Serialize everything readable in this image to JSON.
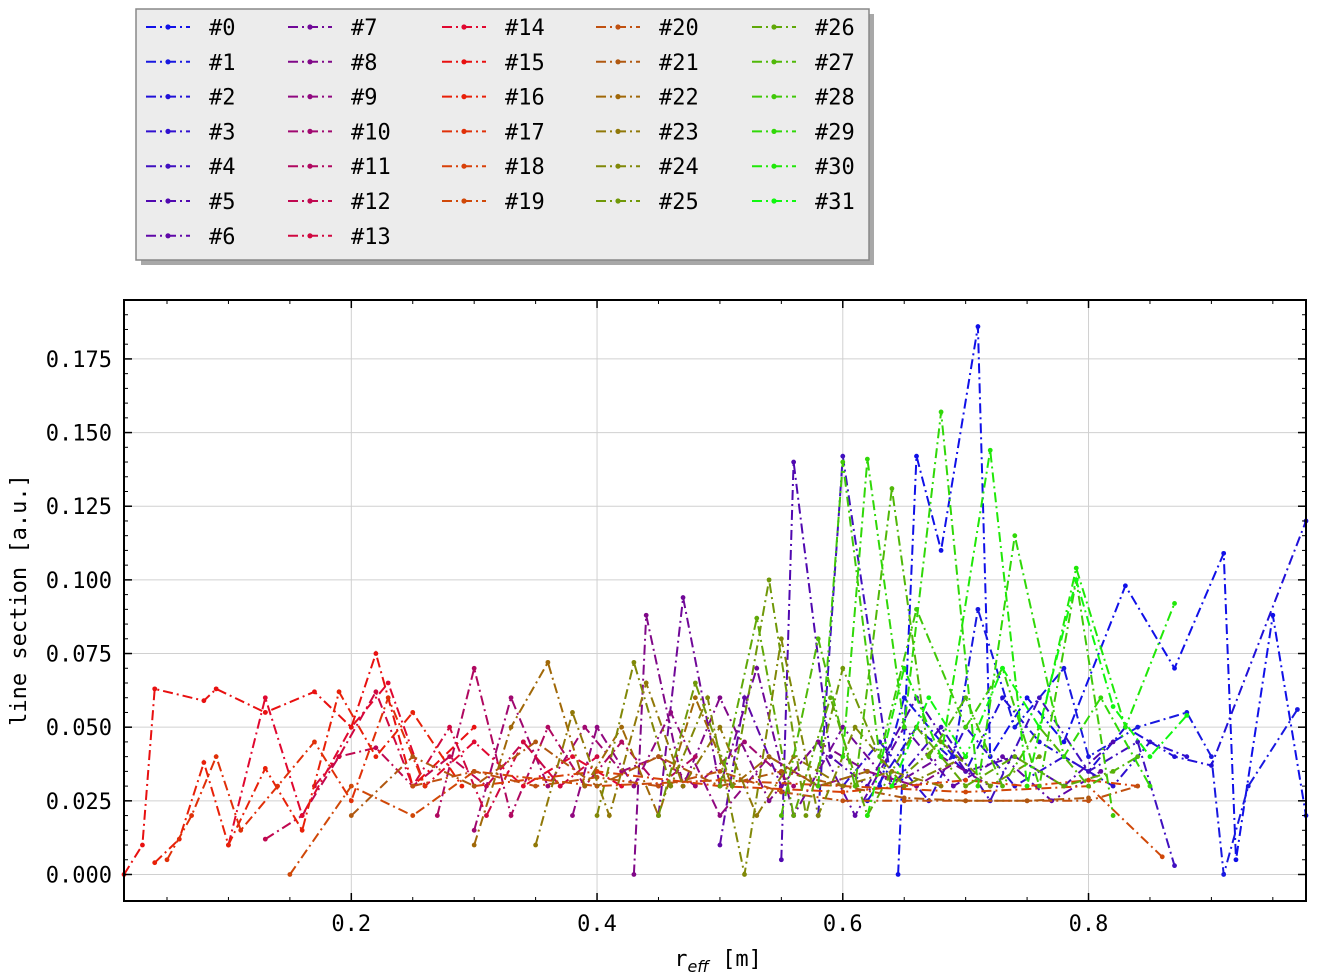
{
  "chart_data": {
    "type": "line",
    "xlabel": "r_eff [m]",
    "xlabel_main": "r",
    "xlabel_sub": "eff",
    "xlabel_unit": " [m]",
    "ylabel": "line section [a.u.]",
    "xlim": [
      0.015,
      0.977
    ],
    "ylim": [
      -0.009,
      0.195
    ],
    "xticks": [
      0.2,
      0.4,
      0.6,
      0.8
    ],
    "xtick_labels": [
      "0.2",
      "0.4",
      "0.6",
      "0.8"
    ],
    "yticks": [
      0.0,
      0.025,
      0.05,
      0.075,
      0.1,
      0.125,
      0.15,
      0.175
    ],
    "ytick_labels": [
      "0.000",
      "0.025",
      "0.050",
      "0.075",
      "0.100",
      "0.125",
      "0.150",
      "0.175"
    ],
    "grid": true,
    "legend_position": "above plot, top-left",
    "legend_columns": 5,
    "line_style": "dash-dot with markers",
    "series": [
      {
        "name": "#0",
        "color": "#1010e8",
        "x": [
          0.645,
          0.66,
          0.68,
          0.71,
          0.72,
          0.75,
          0.78,
          0.83,
          0.87,
          0.91,
          0.92,
          0.95,
          0.977
        ],
        "y": [
          0.0,
          0.142,
          0.11,
          0.186,
          0.04,
          0.06,
          0.045,
          0.098,
          0.07,
          0.109,
          0.005,
          0.088,
          0.02
        ]
      },
      {
        "name": "#1",
        "color": "#1818e0",
        "x": [
          0.63,
          0.65,
          0.69,
          0.71,
          0.74,
          0.78,
          0.8,
          0.84,
          0.88,
          0.9,
          0.91,
          0.93,
          0.97
        ],
        "y": [
          0.03,
          0.06,
          0.04,
          0.09,
          0.05,
          0.07,
          0.04,
          0.05,
          0.055,
          0.04,
          0.0,
          0.03,
          0.056
        ]
      },
      {
        "name": "#2",
        "color": "#2010d8",
        "x": [
          0.62,
          0.66,
          0.7,
          0.73,
          0.76,
          0.8,
          0.83,
          0.87,
          0.9,
          0.977
        ],
        "y": [
          0.025,
          0.05,
          0.035,
          0.06,
          0.045,
          0.035,
          0.05,
          0.04,
          0.037,
          0.12
        ]
      },
      {
        "name": "#3",
        "color": "#3010d0",
        "x": [
          0.6,
          0.63,
          0.67,
          0.7,
          0.74,
          0.78,
          0.82,
          0.85,
          0.88
        ],
        "y": [
          0.03,
          0.045,
          0.025,
          0.05,
          0.03,
          0.04,
          0.03,
          0.045,
          0.04
        ]
      },
      {
        "name": "#4",
        "color": "#4010c0",
        "x": [
          0.58,
          0.6,
          0.64,
          0.68,
          0.72,
          0.76,
          0.8,
          0.84,
          0.87
        ],
        "y": [
          0.02,
          0.142,
          0.03,
          0.05,
          0.025,
          0.06,
          0.035,
          0.045,
          0.003
        ]
      },
      {
        "name": "#5",
        "color": "#5008b0",
        "x": [
          0.55,
          0.56,
          0.59,
          0.62,
          0.66,
          0.7,
          0.74,
          0.78,
          0.82
        ],
        "y": [
          0.005,
          0.14,
          0.04,
          0.03,
          0.06,
          0.035,
          0.04,
          0.03,
          0.045
        ]
      },
      {
        "name": "#6",
        "color": "#6008a8",
        "x": [
          0.5,
          0.52,
          0.55,
          0.58,
          0.61,
          0.65,
          0.69,
          0.73,
          0.77,
          0.81
        ],
        "y": [
          0.01,
          0.06,
          0.03,
          0.045,
          0.02,
          0.05,
          0.03,
          0.04,
          0.025,
          0.035
        ]
      },
      {
        "name": "#7",
        "color": "#700898",
        "x": [
          0.45,
          0.47,
          0.5,
          0.53,
          0.56,
          0.6,
          0.64,
          0.68,
          0.72
        ],
        "y": [
          0.02,
          0.094,
          0.03,
          0.07,
          0.02,
          0.05,
          0.03,
          0.04,
          0.03
        ]
      },
      {
        "name": "#8",
        "color": "#800888",
        "x": [
          0.43,
          0.44,
          0.47,
          0.5,
          0.54,
          0.58,
          0.62,
          0.66,
          0.7
        ],
        "y": [
          0.0,
          0.088,
          0.03,
          0.06,
          0.025,
          0.045,
          0.035,
          0.03,
          0.04
        ]
      },
      {
        "name": "#9",
        "color": "#900880",
        "x": [
          0.38,
          0.4,
          0.43,
          0.46,
          0.5,
          0.54,
          0.58,
          0.62,
          0.66
        ],
        "y": [
          0.02,
          0.05,
          0.03,
          0.055,
          0.02,
          0.04,
          0.03,
          0.035,
          0.03
        ]
      },
      {
        "name": "#10",
        "color": "#a00870",
        "x": [
          0.3,
          0.33,
          0.36,
          0.39,
          0.42,
          0.45,
          0.48,
          0.52,
          0.56
        ],
        "y": [
          0.015,
          0.06,
          0.03,
          0.05,
          0.035,
          0.04,
          0.03,
          0.045,
          0.03
        ]
      },
      {
        "name": "#11",
        "color": "#b00860",
        "x": [
          0.27,
          0.3,
          0.33,
          0.36,
          0.39,
          0.42,
          0.45,
          0.48
        ],
        "y": [
          0.02,
          0.07,
          0.02,
          0.05,
          0.03,
          0.045,
          0.03,
          0.04
        ]
      },
      {
        "name": "#12",
        "color": "#c00850",
        "x": [
          0.13,
          0.16,
          0.19,
          0.22,
          0.25,
          0.28,
          0.31,
          0.34,
          0.37
        ],
        "y": [
          0.012,
          0.02,
          0.04,
          0.043,
          0.03,
          0.04,
          0.03,
          0.045,
          0.03
        ]
      },
      {
        "name": "#13",
        "color": "#d00840",
        "x": [
          0.17,
          0.19,
          0.22,
          0.25,
          0.28,
          0.31,
          0.34,
          0.37,
          0.4
        ],
        "y": [
          0.03,
          0.04,
          0.062,
          0.03,
          0.05,
          0.02,
          0.045,
          0.03,
          0.04
        ]
      },
      {
        "name": "#14",
        "color": "#e00830",
        "x": [
          0.1,
          0.13,
          0.16,
          0.2,
          0.23,
          0.26,
          0.3,
          0.34,
          0.38,
          0.42
        ],
        "y": [
          0.01,
          0.06,
          0.02,
          0.05,
          0.065,
          0.03,
          0.045,
          0.03,
          0.04,
          0.03
        ]
      },
      {
        "name": "#15",
        "color": "#e81010",
        "x": [
          0.015,
          0.03,
          0.04,
          0.08,
          0.09,
          0.13,
          0.17,
          0.2,
          0.22,
          0.25,
          0.3
        ],
        "y": [
          0.0,
          0.01,
          0.063,
          0.059,
          0.063,
          0.055,
          0.062,
          0.05,
          0.075,
          0.03,
          0.05
        ]
      },
      {
        "name": "#16",
        "color": "#e82008",
        "x": [
          0.04,
          0.06,
          0.08,
          0.1,
          0.13,
          0.16,
          0.19,
          0.22,
          0.25,
          0.29
        ],
        "y": [
          0.004,
          0.012,
          0.038,
          0.01,
          0.036,
          0.015,
          0.062,
          0.04,
          0.055,
          0.03
        ]
      },
      {
        "name": "#17",
        "color": "#e03008",
        "x": [
          0.05,
          0.07,
          0.09,
          0.11,
          0.14,
          0.17,
          0.2,
          0.23,
          0.26
        ],
        "y": [
          0.005,
          0.02,
          0.04,
          0.015,
          0.03,
          0.045,
          0.025,
          0.06,
          0.03
        ]
      },
      {
        "name": "#18",
        "color": "#d84008",
        "x": [
          0.3,
          0.4,
          0.5,
          0.6,
          0.65,
          0.7,
          0.75,
          0.8,
          0.84
        ],
        "y": [
          0.03,
          0.035,
          0.03,
          0.028,
          0.03,
          0.032,
          0.03,
          0.032,
          0.03
        ]
      },
      {
        "name": "#19",
        "color": "#d04808",
        "x": [
          0.15,
          0.2,
          0.25,
          0.3,
          0.4,
          0.5,
          0.6,
          0.7,
          0.8,
          0.86
        ],
        "y": [
          0.0,
          0.03,
          0.02,
          0.035,
          0.03,
          0.032,
          0.03,
          0.028,
          0.03,
          0.006
        ]
      },
      {
        "name": "#20",
        "color": "#c05010",
        "x": [
          0.25,
          0.3,
          0.35,
          0.4,
          0.45,
          0.5,
          0.55,
          0.6,
          0.65,
          0.7,
          0.75,
          0.8,
          0.84
        ],
        "y": [
          0.03,
          0.035,
          0.03,
          0.033,
          0.03,
          0.035,
          0.028,
          0.025,
          0.025,
          0.025,
          0.025,
          0.025,
          0.03
        ]
      },
      {
        "name": "#21",
        "color": "#b05810",
        "x": [
          0.2,
          0.25,
          0.3,
          0.35,
          0.4,
          0.45,
          0.5,
          0.55,
          0.6,
          0.65,
          0.7,
          0.75,
          0.8
        ],
        "y": [
          0.02,
          0.04,
          0.03,
          0.045,
          0.03,
          0.04,
          0.03,
          0.035,
          0.03,
          0.026,
          0.025,
          0.025,
          0.026
        ]
      },
      {
        "name": "#22",
        "color": "#a06808",
        "x": [
          0.3,
          0.33,
          0.36,
          0.39,
          0.42,
          0.45,
          0.48,
          0.51,
          0.54,
          0.58,
          0.62
        ],
        "y": [
          0.01,
          0.05,
          0.072,
          0.03,
          0.05,
          0.02,
          0.06,
          0.03,
          0.04,
          0.03,
          0.035
        ]
      },
      {
        "name": "#23",
        "color": "#907808",
        "x": [
          0.35,
          0.38,
          0.41,
          0.44,
          0.47,
          0.5,
          0.53,
          0.56,
          0.6,
          0.64,
          0.68
        ],
        "y": [
          0.01,
          0.055,
          0.02,
          0.065,
          0.03,
          0.05,
          0.02,
          0.04,
          0.03,
          0.035,
          0.03
        ]
      },
      {
        "name": "#24",
        "color": "#808808",
        "x": [
          0.4,
          0.43,
          0.46,
          0.49,
          0.52,
          0.55,
          0.58,
          0.61,
          0.65,
          0.7
        ],
        "y": [
          0.02,
          0.072,
          0.03,
          0.06,
          0.0,
          0.08,
          0.02,
          0.05,
          0.03,
          0.04
        ]
      },
      {
        "name": "#25",
        "color": "#709808",
        "x": [
          0.45,
          0.48,
          0.51,
          0.54,
          0.57,
          0.6,
          0.64,
          0.68,
          0.72,
          0.76
        ],
        "y": [
          0.02,
          0.065,
          0.03,
          0.1,
          0.02,
          0.07,
          0.03,
          0.045,
          0.03,
          0.04
        ]
      },
      {
        "name": "#26",
        "color": "#60a808",
        "x": [
          0.5,
          0.53,
          0.56,
          0.59,
          0.62,
          0.66,
          0.7,
          0.74,
          0.78,
          0.82
        ],
        "y": [
          0.03,
          0.087,
          0.02,
          0.06,
          0.02,
          0.05,
          0.03,
          0.04,
          0.03,
          0.035
        ]
      },
      {
        "name": "#27",
        "color": "#50b808",
        "x": [
          0.55,
          0.58,
          0.61,
          0.64,
          0.67,
          0.7,
          0.73,
          0.76,
          0.8,
          0.84
        ],
        "y": [
          0.02,
          0.08,
          0.03,
          0.131,
          0.04,
          0.06,
          0.03,
          0.05,
          0.03,
          0.04
        ]
      },
      {
        "name": "#28",
        "color": "#40c808",
        "x": [
          0.58,
          0.6,
          0.63,
          0.66,
          0.7,
          0.73,
          0.76,
          0.79,
          0.82
        ],
        "y": [
          0.03,
          0.14,
          0.04,
          0.09,
          0.05,
          0.07,
          0.03,
          0.1,
          0.02
        ]
      },
      {
        "name": "#29",
        "color": "#30d808",
        "x": [
          0.6,
          0.62,
          0.65,
          0.68,
          0.71,
          0.74,
          0.78,
          0.81,
          0.85
        ],
        "y": [
          0.04,
          0.141,
          0.05,
          0.157,
          0.03,
          0.115,
          0.04,
          0.06,
          0.03
        ]
      },
      {
        "name": "#30",
        "color": "#20e808",
        "x": [
          0.62,
          0.65,
          0.68,
          0.72,
          0.75,
          0.79,
          0.83,
          0.87
        ],
        "y": [
          0.02,
          0.07,
          0.04,
          0.144,
          0.03,
          0.104,
          0.05,
          0.092
        ]
      },
      {
        "name": "#31",
        "color": "#10f810",
        "x": [
          0.64,
          0.67,
          0.7,
          0.73,
          0.76,
          0.79,
          0.82,
          0.85,
          0.88
        ],
        "y": [
          0.03,
          0.06,
          0.04,
          0.07,
          0.05,
          0.1,
          0.057,
          0.04,
          0.054
        ]
      }
    ]
  }
}
